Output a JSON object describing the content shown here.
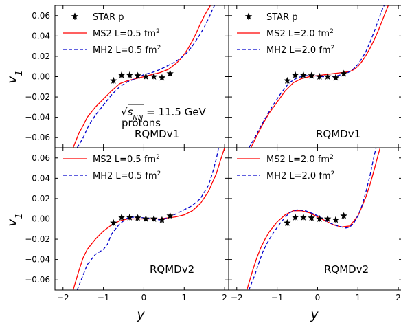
{
  "chart_data": {
    "type": "line",
    "x_range": [
      -2.2,
      2.1
    ],
    "y_range": [
      -0.07,
      0.07
    ],
    "x_ticks": [
      -2,
      -1,
      0,
      1,
      2
    ],
    "y_ticks": [
      -0.06,
      -0.04,
      -0.02,
      0.0,
      0.02,
      0.04,
      0.06
    ],
    "x_tick_labels": [
      "−2",
      "−1",
      "0",
      "1",
      "2"
    ],
    "y_tick_labels": [
      "−0.06",
      "−0.04",
      "−0.02",
      "0.00",
      "0.02",
      "0.04",
      "0.06"
    ],
    "xlabel": "y",
    "ylabel": "v",
    "ylabel_sub": "1",
    "colors": {
      "ms2": "#ff0000",
      "mh2": "#0000cc",
      "star": "#000000"
    },
    "star_data": {
      "x": [
        -0.75,
        -0.55,
        -0.35,
        -0.15,
        0.05,
        0.25,
        0.45,
        0.65
      ],
      "y": [
        -0.004,
        0.0015,
        0.0015,
        0.001,
        0.0,
        0.0,
        -0.001,
        0.003
      ]
    },
    "panels": [
      {
        "legend": [
          {
            "key": "star",
            "label": "STAR p"
          },
          {
            "key": "ms2",
            "label": "MS2 L=0.5 fm",
            "sup": "2"
          },
          {
            "key": "mh2",
            "label": "MH2 L=0.5 fm",
            "sup": "2"
          }
        ],
        "annotation_label": "RQMDv1",
        "ms2": {
          "x": [
            -1.75,
            -1.6,
            -1.5,
            -1.4,
            -1.3,
            -1.2,
            -1.0,
            -0.8,
            -0.6,
            -0.4,
            -0.2,
            0.0,
            0.2,
            0.4,
            0.6,
            0.8,
            0.9,
            1.0,
            1.1,
            1.2,
            1.3,
            1.4,
            1.5,
            1.6,
            1.65
          ],
          "y": [
            -0.07,
            -0.055,
            -0.048,
            -0.04,
            -0.035,
            -0.03,
            -0.022,
            -0.014,
            -0.007,
            -0.004,
            -0.002,
            0.0,
            0.002,
            0.004,
            0.007,
            0.013,
            0.017,
            0.022,
            0.028,
            0.035,
            0.043,
            0.052,
            0.06,
            0.067,
            0.07
          ]
        },
        "mh2": {
          "x": [
            -1.65,
            -1.5,
            -1.4,
            -1.3,
            -1.2,
            -1.0,
            -0.8,
            -0.6,
            -0.4,
            -0.2,
            0.0,
            0.2,
            0.4,
            0.6,
            0.8,
            0.9,
            1.0,
            1.1,
            1.2,
            1.3,
            1.4,
            1.5,
            1.6,
            1.7,
            1.75
          ],
          "y": [
            -0.07,
            -0.06,
            -0.051,
            -0.044,
            -0.038,
            -0.028,
            -0.018,
            -0.01,
            -0.005,
            -0.002,
            0.002,
            0.004,
            0.007,
            0.011,
            0.015,
            0.018,
            0.021,
            0.025,
            0.03,
            0.036,
            0.042,
            0.049,
            0.057,
            0.066,
            0.07
          ]
        }
      },
      {
        "legend": [
          {
            "key": "star",
            "label": "STAR p"
          },
          {
            "key": "ms2",
            "label": "MS2 L=2.0 fm",
            "sup": "2"
          },
          {
            "key": "mh2",
            "label": "MH2 L=2.0 fm",
            "sup": "2"
          }
        ],
        "annotation_label": "RQMDv1",
        "ms2": {
          "x": [
            -1.65,
            -1.5,
            -1.4,
            -1.3,
            -1.2,
            -1.0,
            -0.8,
            -0.6,
            -0.4,
            -0.2,
            0.0,
            0.2,
            0.4,
            0.6,
            0.8,
            0.9,
            1.0,
            1.1,
            1.2,
            1.3,
            1.4,
            1.5,
            1.6,
            1.7,
            1.75
          ],
          "y": [
            -0.07,
            -0.058,
            -0.05,
            -0.043,
            -0.036,
            -0.025,
            -0.014,
            -0.006,
            -0.002,
            0.0,
            0.001,
            0.002,
            0.003,
            0.004,
            0.005,
            0.007,
            0.01,
            0.015,
            0.021,
            0.028,
            0.036,
            0.045,
            0.055,
            0.065,
            0.07
          ]
        },
        "mh2": {
          "x": [
            -1.7,
            -1.55,
            -1.45,
            -1.35,
            -1.25,
            -1.1,
            -0.9,
            -0.7,
            -0.5,
            -0.3,
            -0.1,
            0.1,
            0.3,
            0.5,
            0.7,
            0.8,
            0.9,
            1.0,
            1.1,
            1.2,
            1.3,
            1.4,
            1.5,
            1.6,
            1.65
          ],
          "y": [
            -0.07,
            -0.06,
            -0.052,
            -0.045,
            -0.038,
            -0.028,
            -0.016,
            -0.006,
            -0.001,
            0.001,
            0.001,
            0.0,
            0.0,
            0.001,
            0.003,
            0.005,
            0.008,
            0.012,
            0.018,
            0.025,
            0.034,
            0.044,
            0.055,
            0.066,
            0.07
          ]
        }
      },
      {
        "legend": [
          {
            "key": "ms2",
            "label": "MS2 L=0.5 fm",
            "sup": "2"
          },
          {
            "key": "mh2",
            "label": "MH2 L=0.5 fm",
            "sup": "2"
          }
        ],
        "annotation_label": "RQMDv2",
        "ms2": {
          "x": [
            -1.75,
            -1.6,
            -1.5,
            -1.4,
            -1.3,
            -1.2,
            -1.0,
            -0.8,
            -0.6,
            -0.4,
            -0.2,
            0.0,
            0.2,
            0.4,
            0.6,
            0.8,
            1.0,
            1.2,
            1.4,
            1.6,
            1.8,
            1.9,
            2.0
          ],
          "y": [
            -0.07,
            -0.05,
            -0.038,
            -0.03,
            -0.025,
            -0.02,
            -0.012,
            -0.006,
            -0.002,
            0.0,
            0.0,
            0.0,
            0.0,
            0.0,
            0.001,
            0.002,
            0.004,
            0.008,
            0.015,
            0.027,
            0.045,
            0.058,
            0.07
          ]
        },
        "mh2": {
          "x": [
            -1.65,
            -1.5,
            -1.4,
            -1.3,
            -1.2,
            -1.0,
            -0.9,
            -0.8,
            -0.6,
            -0.4,
            -0.2,
            0.0,
            0.2,
            0.4,
            0.6,
            0.8,
            1.0,
            1.2,
            1.4,
            1.6,
            1.7,
            1.8,
            1.85
          ],
          "y": [
            -0.07,
            -0.055,
            -0.045,
            -0.04,
            -0.035,
            -0.03,
            -0.025,
            -0.015,
            -0.005,
            0.001,
            0.002,
            0.001,
            0.0,
            -0.001,
            0.001,
            0.005,
            0.009,
            0.013,
            0.02,
            0.033,
            0.045,
            0.06,
            0.07
          ]
        }
      },
      {
        "legend": [
          {
            "key": "ms2",
            "label": "MS2 L=2.0 fm",
            "sup": "2"
          },
          {
            "key": "mh2",
            "label": "MH2 L=2.0 fm",
            "sup": "2"
          }
        ],
        "annotation_label": "RQMDv2",
        "ms2": {
          "x": [
            -1.75,
            -1.6,
            -1.5,
            -1.4,
            -1.3,
            -1.2,
            -1.0,
            -0.8,
            -0.6,
            -0.4,
            -0.2,
            0.0,
            0.2,
            0.4,
            0.6,
            0.8,
            1.0,
            1.1,
            1.2,
            1.3,
            1.4,
            1.5,
            1.55
          ],
          "y": [
            -0.07,
            -0.05,
            -0.038,
            -0.028,
            -0.02,
            -0.013,
            -0.003,
            0.004,
            0.008,
            0.008,
            0.006,
            0.002,
            -0.002,
            -0.006,
            -0.008,
            -0.007,
            0.003,
            0.012,
            0.022,
            0.034,
            0.048,
            0.063,
            0.07
          ]
        },
        "mh2": {
          "x": [
            -1.7,
            -1.55,
            -1.45,
            -1.35,
            -1.25,
            -1.1,
            -0.9,
            -0.7,
            -0.5,
            -0.3,
            -0.1,
            0.1,
            0.3,
            0.5,
            0.7,
            0.8,
            0.9,
            1.0,
            1.1,
            1.2,
            1.3,
            1.4,
            1.45
          ],
          "y": [
            -0.07,
            -0.055,
            -0.043,
            -0.032,
            -0.024,
            -0.014,
            -0.003,
            0.006,
            0.009,
            0.008,
            0.005,
            0.001,
            -0.004,
            -0.007,
            -0.009,
            -0.008,
            -0.004,
            0.003,
            0.013,
            0.027,
            0.043,
            0.062,
            0.07
          ]
        }
      }
    ],
    "annotation": {
      "sqrt_symbol": "√",
      "s": "s",
      "sub": "NN",
      "value": " = 11.5 GeV",
      "species": "protons"
    }
  }
}
